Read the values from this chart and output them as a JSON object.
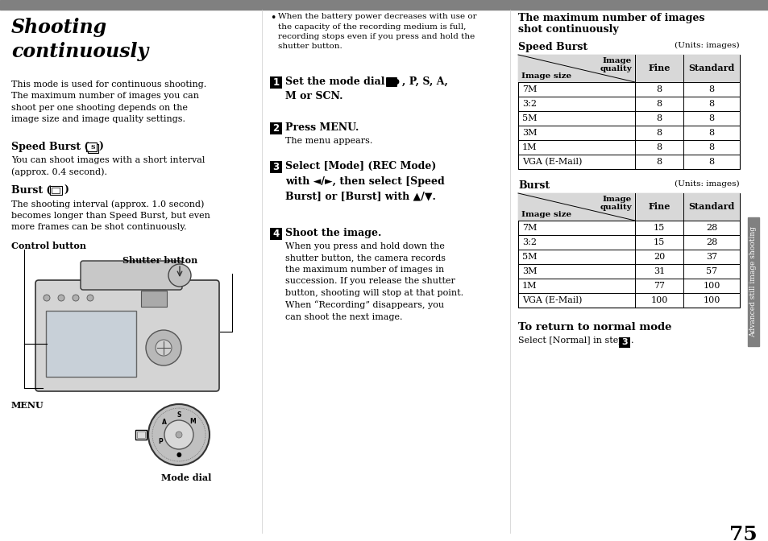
{
  "bg_color": "#ffffff",
  "page_number": "75",
  "top_bar_color": "#808080",
  "sidebar_color": "#808080",
  "sidebar_text": "Advanced still image shooting",
  "speed_burst_label": "Speed Burst",
  "speed_burst_units": "(Units: images)",
  "speed_burst_rows": [
    "7M",
    "3:2",
    "5M",
    "3M",
    "1M",
    "VGA (E-Mail)"
  ],
  "speed_burst_fine": [
    8,
    8,
    8,
    8,
    8,
    8
  ],
  "speed_burst_standard": [
    8,
    8,
    8,
    8,
    8,
    8
  ],
  "burst_label": "Burst",
  "burst_units": "(Units: images)",
  "burst_rows": [
    "7M",
    "3:2",
    "5M",
    "3M",
    "1M",
    "VGA (E-Mail)"
  ],
  "burst_fine": [
    15,
    15,
    20,
    31,
    77,
    100
  ],
  "burst_standard": [
    28,
    28,
    37,
    57,
    100,
    100
  ],
  "col_header1": "Fine",
  "col_header2": "Standard",
  "row_header1": "Image\nquality",
  "row_header2": "Image size",
  "return_title": "To return to normal mode",
  "return_text": "Select [Normal] in step",
  "return_step": "3",
  "right_col_title_line1": "The maximum number of images",
  "right_col_title_line2": "shot continuously"
}
